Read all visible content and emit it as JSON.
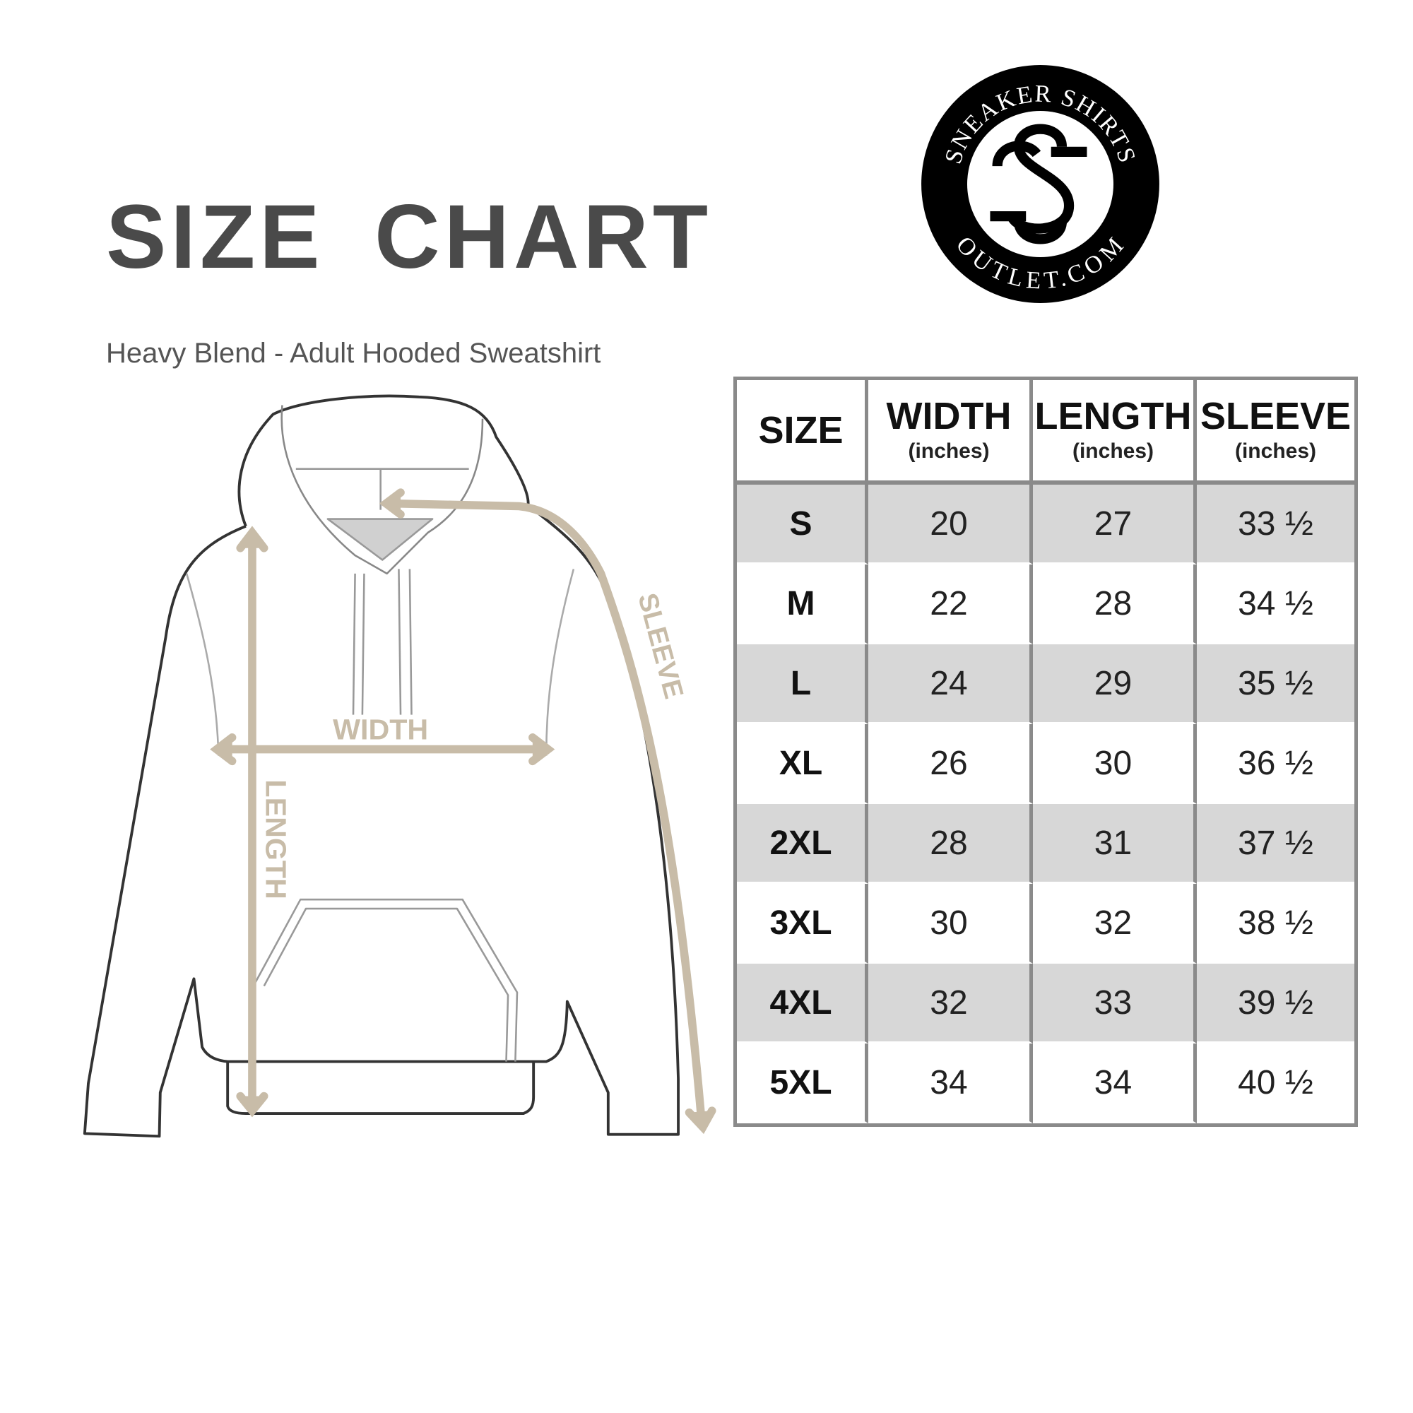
{
  "title": "SIZE CHART",
  "subtitle": "Heavy Blend - Adult Hooded Sweatshirt",
  "logo": {
    "top_text": "SNEAKER SHIRTS",
    "bottom_text": "OUTLET.COM",
    "monogram": "SS"
  },
  "diagram": {
    "width_label": "WIDTH",
    "length_label": "LENGTH",
    "sleeve_label": "SLEEVE",
    "arrow_color": "#c8bca8"
  },
  "table": {
    "headers": [
      {
        "label": "SIZE",
        "unit": ""
      },
      {
        "label": "WIDTH",
        "unit": "(inches)"
      },
      {
        "label": "LENGTH",
        "unit": "(inches)"
      },
      {
        "label": "SLEEVE",
        "unit": "(inches)"
      }
    ],
    "rows": [
      {
        "size": "S",
        "width": "20",
        "length": "27",
        "sleeve": "33 ½"
      },
      {
        "size": "M",
        "width": "22",
        "length": "28",
        "sleeve": "34 ½"
      },
      {
        "size": "L",
        "width": "24",
        "length": "29",
        "sleeve": "35 ½"
      },
      {
        "size": "XL",
        "width": "26",
        "length": "30",
        "sleeve": "36 ½"
      },
      {
        "size": "2XL",
        "width": "28",
        "length": "31",
        "sleeve": "37 ½"
      },
      {
        "size": "3XL",
        "width": "30",
        "length": "32",
        "sleeve": "38 ½"
      },
      {
        "size": "4XL",
        "width": "32",
        "length": "33",
        "sleeve": "39 ½"
      },
      {
        "size": "5XL",
        "width": "34",
        "length": "34",
        "sleeve": "40 ½"
      }
    ],
    "shade_color": "#d7d7d7",
    "border_color": "#8a8a8a"
  }
}
